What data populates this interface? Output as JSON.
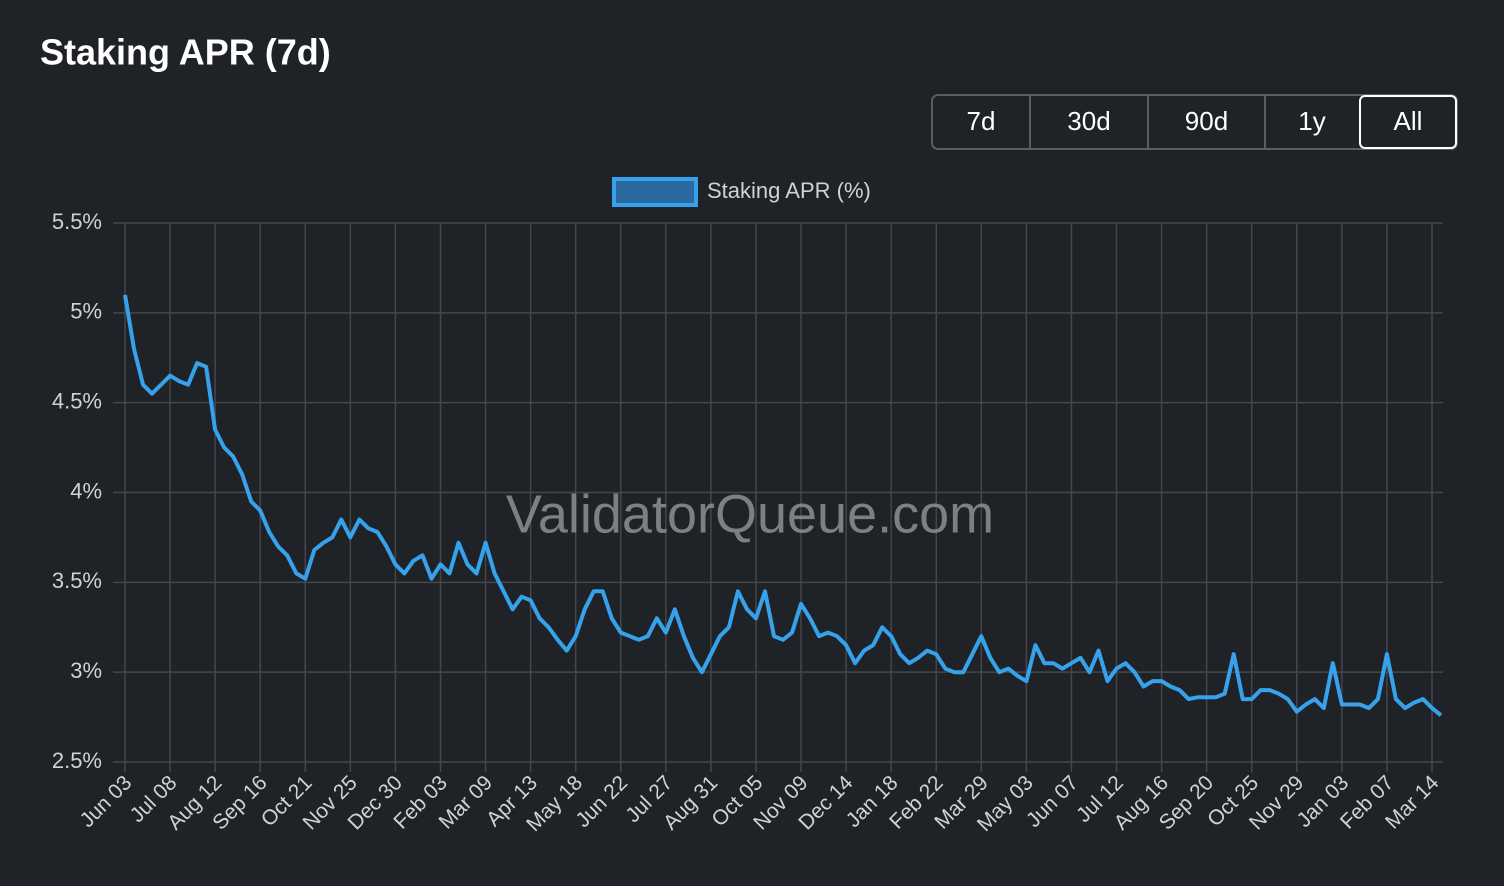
{
  "title": "Staking APR (7d)",
  "controls": {
    "buttons": [
      "7d",
      "30d",
      "90d",
      "1y",
      "All"
    ],
    "active_index": 4
  },
  "chart_data": {
    "type": "line",
    "watermark": "ValidatorQueue.com",
    "categories": [
      "Jun 03",
      null,
      null,
      null,
      null,
      "Jul 08",
      null,
      null,
      null,
      null,
      "Aug 12",
      null,
      null,
      null,
      null,
      "Sep 16",
      null,
      null,
      null,
      null,
      "Oct 21",
      null,
      null,
      null,
      null,
      "Nov 25",
      null,
      null,
      null,
      null,
      "Dec 30",
      null,
      null,
      null,
      null,
      "Feb 03",
      null,
      null,
      null,
      null,
      "Mar 09",
      null,
      null,
      null,
      null,
      "Apr 13",
      null,
      null,
      null,
      null,
      "May 18",
      null,
      null,
      null,
      null,
      "Jun 22",
      null,
      null,
      null,
      null,
      "Jul 27",
      null,
      null,
      null,
      null,
      "Aug 31",
      null,
      null,
      null,
      null,
      "Oct 05",
      null,
      null,
      null,
      null,
      "Nov 09",
      null,
      null,
      null,
      null,
      "Dec 14",
      null,
      null,
      null,
      null,
      "Jan 18",
      null,
      null,
      null,
      null,
      "Feb 22",
      null,
      null,
      null,
      null,
      "Mar 29",
      null,
      null,
      null,
      null,
      "May 03",
      null,
      null,
      null,
      null,
      "Jun 07",
      null,
      null,
      null,
      null,
      "Jul 12",
      null,
      null,
      null,
      null,
      "Aug 16",
      null,
      null,
      null,
      null,
      "Sep 20",
      null,
      null,
      null,
      null,
      "Oct 25",
      null,
      null,
      null,
      null,
      "Nov 29",
      null,
      null,
      null,
      null,
      "Jan 03",
      null,
      null,
      null,
      null,
      "Feb 07",
      null,
      null,
      null,
      null,
      "Mar 14",
      null
    ],
    "series": [
      {
        "name": "Staking APR (%)",
        "color": "#36a2eb",
        "fill": "#2b6a9e",
        "values": [
          5.1,
          4.8,
          4.6,
          4.55,
          4.6,
          4.65,
          4.62,
          4.6,
          4.72,
          4.7,
          4.35,
          4.25,
          4.2,
          4.1,
          3.95,
          3.9,
          3.78,
          3.7,
          3.65,
          3.55,
          3.52,
          3.68,
          3.72,
          3.75,
          3.85,
          3.75,
          3.85,
          3.8,
          3.78,
          3.7,
          3.6,
          3.55,
          3.62,
          3.65,
          3.52,
          3.6,
          3.55,
          3.72,
          3.6,
          3.55,
          3.72,
          3.55,
          3.45,
          3.35,
          3.42,
          3.4,
          3.3,
          3.25,
          3.18,
          3.12,
          3.2,
          3.35,
          3.45,
          3.45,
          3.3,
          3.22,
          3.2,
          3.18,
          3.2,
          3.3,
          3.22,
          3.35,
          3.2,
          3.08,
          3.0,
          3.1,
          3.2,
          3.25,
          3.45,
          3.35,
          3.3,
          3.45,
          3.2,
          3.18,
          3.22,
          3.38,
          3.3,
          3.2,
          3.22,
          3.2,
          3.15,
          3.05,
          3.12,
          3.15,
          3.25,
          3.2,
          3.1,
          3.05,
          3.08,
          3.12,
          3.1,
          3.02,
          3.0,
          3.0,
          3.1,
          3.2,
          3.08,
          3.0,
          3.02,
          2.98,
          2.95,
          3.15,
          3.05,
          3.05,
          3.02,
          3.05,
          3.08,
          3.0,
          3.12,
          2.95,
          3.02,
          3.05,
          3.0,
          2.92,
          2.95,
          2.95,
          2.92,
          2.9,
          2.85,
          2.86,
          2.86,
          2.86,
          2.88,
          3.1,
          2.85,
          2.85,
          2.9,
          2.9,
          2.88,
          2.85,
          2.78,
          2.82,
          2.85,
          2.8,
          3.05,
          2.82,
          2.82,
          2.82,
          2.8,
          2.85,
          3.1,
          2.85,
          2.8,
          2.83,
          2.85,
          2.8,
          2.76
        ]
      }
    ],
    "ylim": [
      2.5,
      5.5
    ],
    "yticks": [
      {
        "value": 2.5,
        "label": "2.5%"
      },
      {
        "value": 3,
        "label": "3%"
      },
      {
        "value": 3.5,
        "label": "3.5%"
      },
      {
        "value": 4,
        "label": "4%"
      },
      {
        "value": 4.5,
        "label": "4.5%"
      },
      {
        "value": 5,
        "label": "5%"
      },
      {
        "value": 5.5,
        "label": "5.5%"
      }
    ],
    "grid": true,
    "legend": "top"
  }
}
